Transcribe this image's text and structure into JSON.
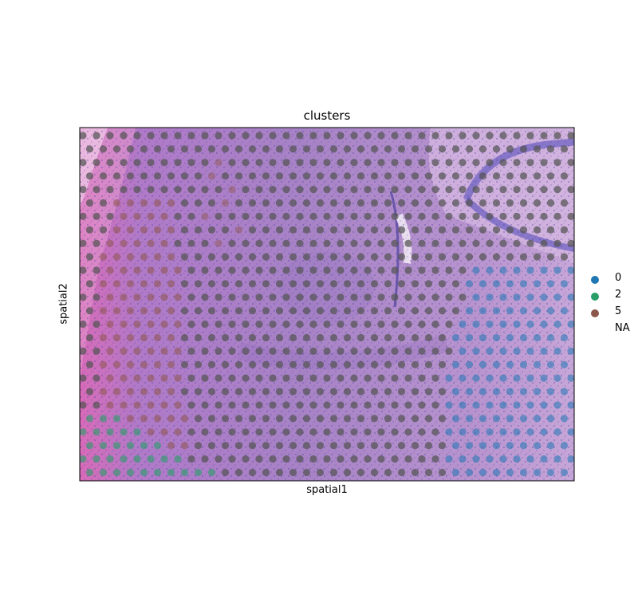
{
  "chart_data": {
    "type": "scatter",
    "title": "clusters",
    "xlabel": "spatial1",
    "ylabel": "spatial2",
    "background": "H&E stained tissue image (mouse brain, cortex and hippocampus)",
    "grid": false,
    "legend_position": "right",
    "legend": [
      {
        "label": "0",
        "color": "#1f77b4"
      },
      {
        "label": "2",
        "color": "#279e68"
      },
      {
        "label": "5",
        "color": "#8c564b"
      },
      {
        "label": "NA",
        "color": ""
      }
    ],
    "na_color": "#555555"
  }
}
